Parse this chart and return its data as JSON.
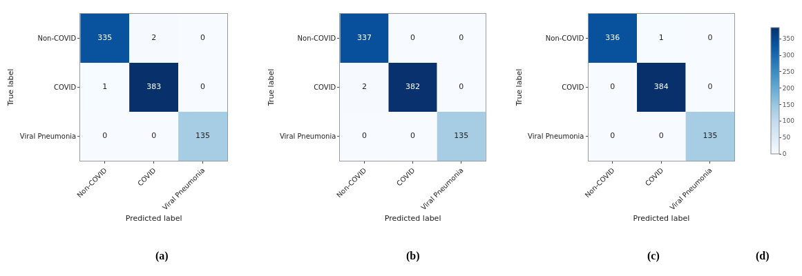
{
  "chart_data": [
    {
      "type": "heatmap",
      "title": "(a)",
      "xlabel": "Predicted label",
      "ylabel": "True label",
      "categories": [
        "Non-COVID",
        "COVID",
        "Viral Pneumonia"
      ],
      "y_categories": [
        "Non-COVID",
        "COVID",
        "Viral Pneumonia"
      ],
      "cells": [
        [
          335,
          2,
          0
        ],
        [
          1,
          383,
          0
        ],
        [
          0,
          0,
          135
        ]
      ],
      "data_labels": true
    },
    {
      "type": "heatmap",
      "title": "(b)",
      "xlabel": "Predicted label",
      "ylabel": "True label",
      "categories": [
        "Non-COVID",
        "COVID",
        "Viral Pneumonia"
      ],
      "y_categories": [
        "Non-COVID",
        "COVID",
        "Viral Pneumonia"
      ],
      "cells": [
        [
          337,
          0,
          0
        ],
        [
          2,
          382,
          0
        ],
        [
          0,
          0,
          135
        ]
      ],
      "data_labels": true
    },
    {
      "type": "heatmap",
      "title": "(c)",
      "xlabel": "Predicted label",
      "ylabel": "True label",
      "categories": [
        "Non-COVID",
        "COVID",
        "Viral Pneumonia"
      ],
      "y_categories": [
        "Non-COVID",
        "COVID",
        "Viral Pneumonia"
      ],
      "cells": [
        [
          336,
          1,
          0
        ],
        [
          0,
          384,
          0
        ],
        [
          0,
          0,
          135
        ]
      ],
      "data_labels": true,
      "clim": [
        0,
        384
      ],
      "cticks": [
        0,
        50,
        100,
        150,
        200,
        250,
        300,
        350
      ],
      "annotations": [
        "(d)"
      ]
    }
  ]
}
